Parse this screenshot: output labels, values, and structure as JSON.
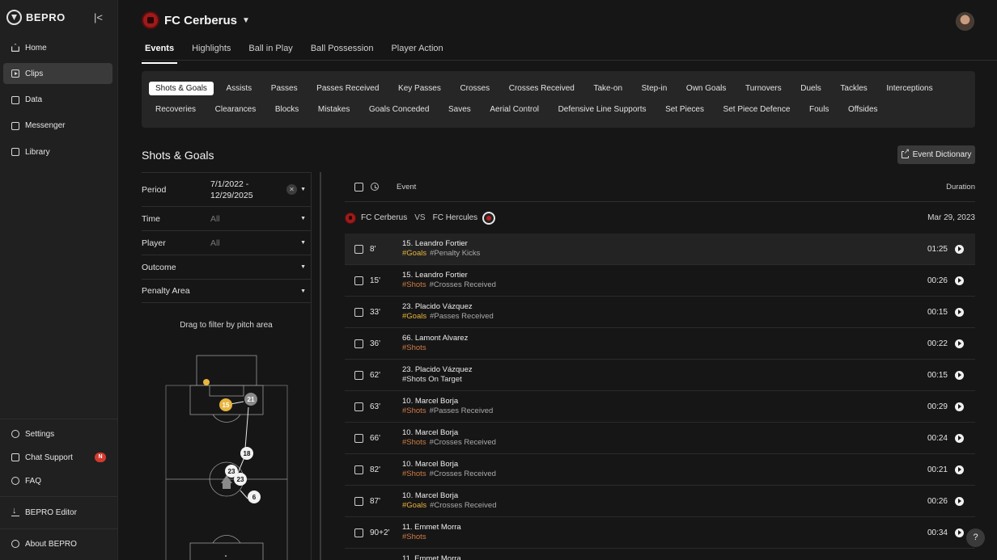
{
  "brand": {
    "name": "BEPRO"
  },
  "sidebar": {
    "top_items": [
      {
        "label": "Home",
        "icon": "home-icon"
      },
      {
        "label": "Clips",
        "icon": "clips-icon",
        "active": true
      },
      {
        "label": "Data",
        "icon": "data-icon"
      },
      {
        "label": "Messenger",
        "icon": "messenger-icon"
      },
      {
        "label": "Library",
        "icon": "library-icon"
      }
    ],
    "bottom_items": {
      "settings": "Settings",
      "chat_support": "Chat Support",
      "chat_badge": "N",
      "faq": "FAQ",
      "editor": "BEPRO Editor",
      "about": "About BEPRO"
    }
  },
  "header": {
    "team_name": "FC Cerberus",
    "tabs": [
      "Events",
      "Highlights",
      "Ball in Play",
      "Ball Possession",
      "Player Action"
    ],
    "active_tab": "Events"
  },
  "chips": {
    "row1": [
      "Shots & Goals",
      "Assists",
      "Passes",
      "Passes Received",
      "Key Passes",
      "Crosses",
      "Crosses Received",
      "Take-on",
      "Step-in",
      "Own Goals",
      "Turnovers",
      "Duels",
      "Tackles",
      "Interceptions"
    ],
    "row2": [
      "Recoveries",
      "Clearances",
      "Blocks",
      "Mistakes",
      "Goals Conceded",
      "Saves",
      "Aerial Control",
      "Defensive Line Supports",
      "Set Pieces",
      "Set Piece Defence",
      "Fouls",
      "Offsides"
    ],
    "active": "Shots & Goals"
  },
  "section": {
    "title": "Shots & Goals",
    "dictionary_button": "Event Dictionary"
  },
  "filters": {
    "period_label": "Period",
    "period_value_line1": "7/1/2022 -",
    "period_value_line2": "12/29/2025",
    "time_label": "Time",
    "time_value": "All",
    "player_label": "Player",
    "player_value": "All",
    "outcome_label": "Outcome",
    "penalty_label": "Penalty Area",
    "drag_hint": "Drag to filter by pitch area"
  },
  "pitch_markers": [
    "15",
    "21",
    "18",
    "23",
    "23",
    "6"
  ],
  "list": {
    "col_event": "Event",
    "col_duration": "Duration",
    "match": {
      "home": "FC Cerberus",
      "vs": "VS",
      "away": "FC Hercules",
      "date": "Mar 29, 2023"
    },
    "rows": [
      {
        "minute": "8'",
        "player": "15. Leandro Fortier",
        "tag1": "#Goals",
        "tag1_type": "goal",
        "tag2": "#Penalty Kicks",
        "duration": "01:25"
      },
      {
        "minute": "15'",
        "player": "15. Leandro Fortier",
        "tag1": "#Shots",
        "tag1_type": "shot",
        "tag2": "#Crosses Received",
        "duration": "00:26"
      },
      {
        "minute": "33'",
        "player": "23. Placido Vázquez",
        "tag1": "#Goals",
        "tag1_type": "goal",
        "tag2": "#Passes Received",
        "duration": "00:15"
      },
      {
        "minute": "36'",
        "player": "66. Lamont Alvarez",
        "tag1": "#Shots",
        "tag1_type": "shot",
        "tag2": "",
        "duration": "00:22"
      },
      {
        "minute": "62'",
        "player": "23. Placido Vázquez",
        "tag1": "#Shots On Target",
        "tag1_type": "plain",
        "tag2": "",
        "duration": "00:15"
      },
      {
        "minute": "63'",
        "player": "10. Marcel Borja",
        "tag1": "#Shots",
        "tag1_type": "shot",
        "tag2": "#Passes Received",
        "duration": "00:29"
      },
      {
        "minute": "66'",
        "player": "10. Marcel Borja",
        "tag1": "#Shots",
        "tag1_type": "shot",
        "tag2": "#Crosses Received",
        "duration": "00:24"
      },
      {
        "minute": "82'",
        "player": "10. Marcel Borja",
        "tag1": "#Shots",
        "tag1_type": "shot",
        "tag2": "#Crosses Received",
        "duration": "00:21"
      },
      {
        "minute": "87'",
        "player": "10. Marcel Borja",
        "tag1": "#Goals",
        "tag1_type": "goal",
        "tag2": "#Crosses Received",
        "duration": "00:26"
      },
      {
        "minute": "90+2'",
        "player": "11. Emmet Morra",
        "tag1": "#Shots",
        "tag1_type": "shot",
        "tag2": "",
        "duration": "00:34"
      },
      {
        "minute": "",
        "player": "11. Emmet Morra",
        "tag1": "",
        "tag1_type": "shot",
        "tag2": "",
        "duration": ""
      }
    ]
  },
  "help": {
    "label": "?"
  }
}
